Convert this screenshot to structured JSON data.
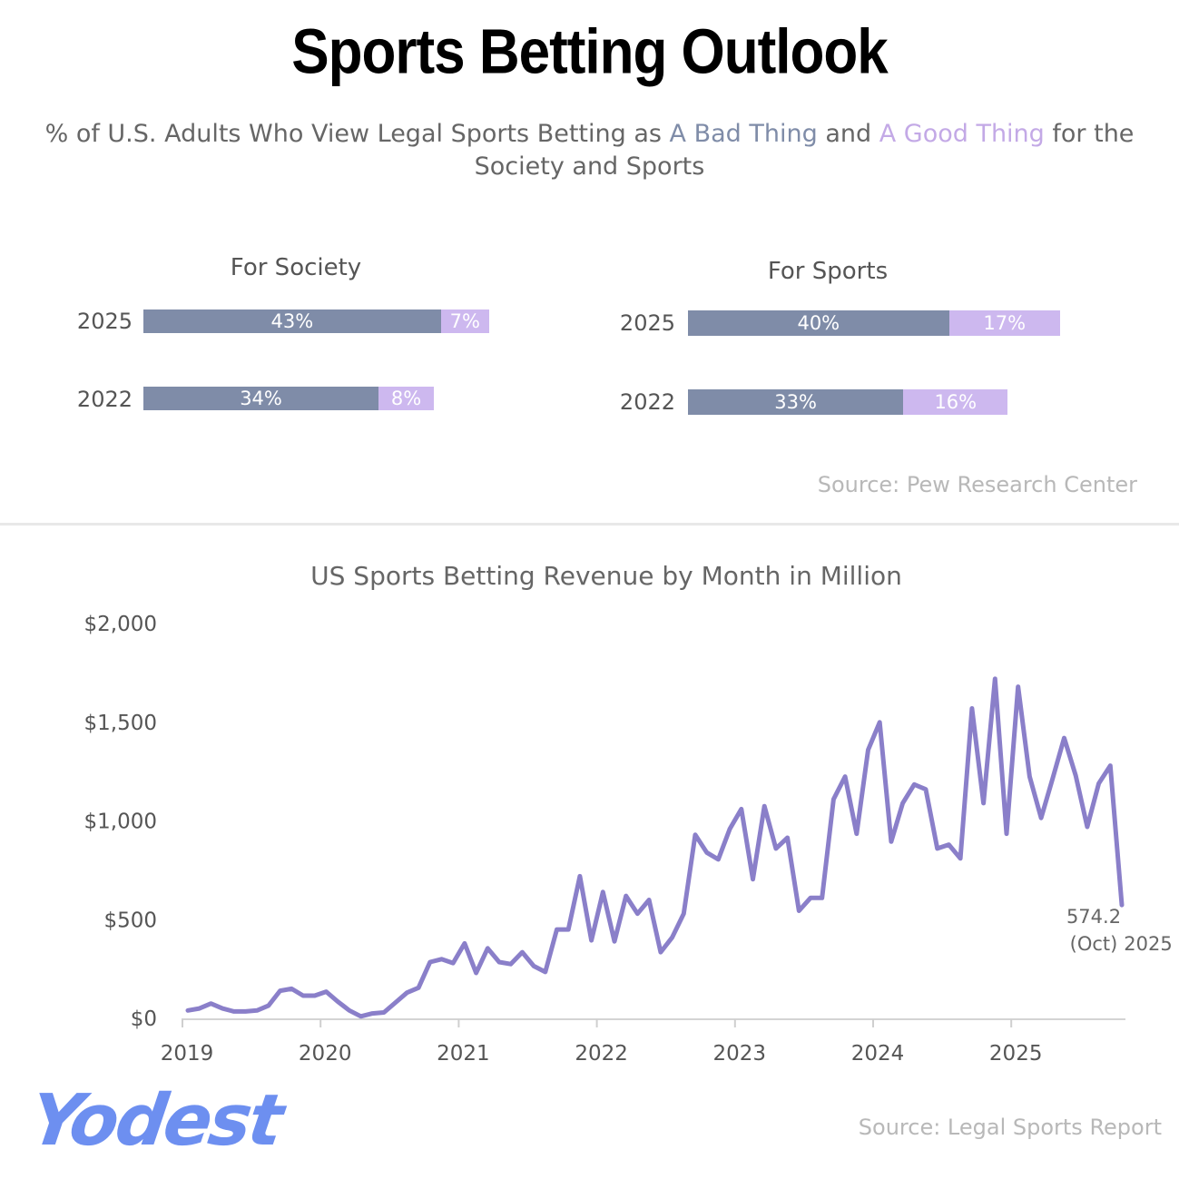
{
  "header": {
    "title": "Sports Betting Outlook",
    "subtitle_pre": "% of U.S. Adults Who View Legal Sports Betting as ",
    "subtitle_bad": "A Bad Thing",
    "subtitle_mid": " and ",
    "subtitle_good": "A Good Thing",
    "subtitle_post": " for the Society and Sports"
  },
  "colors": {
    "bad": "#7f8ca8",
    "good": "#cdb8ef",
    "line": "#8a7fc9"
  },
  "survey_source": "Source: Pew Research Center",
  "revenue_source": "Source: Legal Sports Report",
  "logo": "Yodest",
  "chart_data": [
    {
      "type": "bar",
      "title": "For Society",
      "categories": [
        "2025",
        "2022"
      ],
      "series": [
        {
          "name": "A Bad Thing",
          "values": [
            43,
            34
          ],
          "labels": [
            "43%",
            "34%"
          ]
        },
        {
          "name": "A Good Thing",
          "values": [
            7,
            8
          ],
          "labels": [
            "7%",
            "8%"
          ]
        }
      ]
    },
    {
      "type": "bar",
      "title": "For Sports",
      "categories": [
        "2025",
        "2022"
      ],
      "series": [
        {
          "name": "A Bad Thing",
          "values": [
            40,
            33
          ],
          "labels": [
            "40%",
            "33%"
          ]
        },
        {
          "name": "A Good Thing",
          "values": [
            17,
            16
          ],
          "labels": [
            "17%",
            "16%"
          ]
        }
      ]
    },
    {
      "type": "line",
      "title": "US Sports Betting Revenue by Month in Million",
      "x_start": "2019-01",
      "x_end": "2025-10",
      "x_ticks": [
        "2019",
        "2020",
        "2021",
        "2022",
        "2023",
        "2024",
        "2025"
      ],
      "y_ticks": [
        "$0",
        "$500",
        "$1,000",
        "$1,500",
        "$2,000"
      ],
      "ylim": [
        0,
        2000
      ],
      "values": [
        40,
        50,
        75,
        50,
        35,
        35,
        40,
        65,
        140,
        150,
        115,
        115,
        135,
        85,
        40,
        10,
        25,
        30,
        80,
        130,
        155,
        285,
        300,
        280,
        380,
        230,
        355,
        285,
        275,
        335,
        265,
        235,
        450,
        450,
        720,
        395,
        640,
        390,
        620,
        530,
        600,
        335,
        410,
        530,
        930,
        840,
        805,
        960,
        1060,
        705,
        1075,
        860,
        915,
        545,
        610,
        610,
        1110,
        1225,
        935,
        1360,
        1500,
        895,
        1090,
        1185,
        1160,
        860,
        880,
        810,
        1570,
        1090,
        1720,
        935,
        1680,
        1225,
        1015,
        1215,
        1420,
        1230,
        970,
        1190,
        1280,
        574.2
      ],
      "end_label_value": "574.2",
      "end_label_period": "(Oct)",
      "end_label_year": "2025"
    }
  ]
}
